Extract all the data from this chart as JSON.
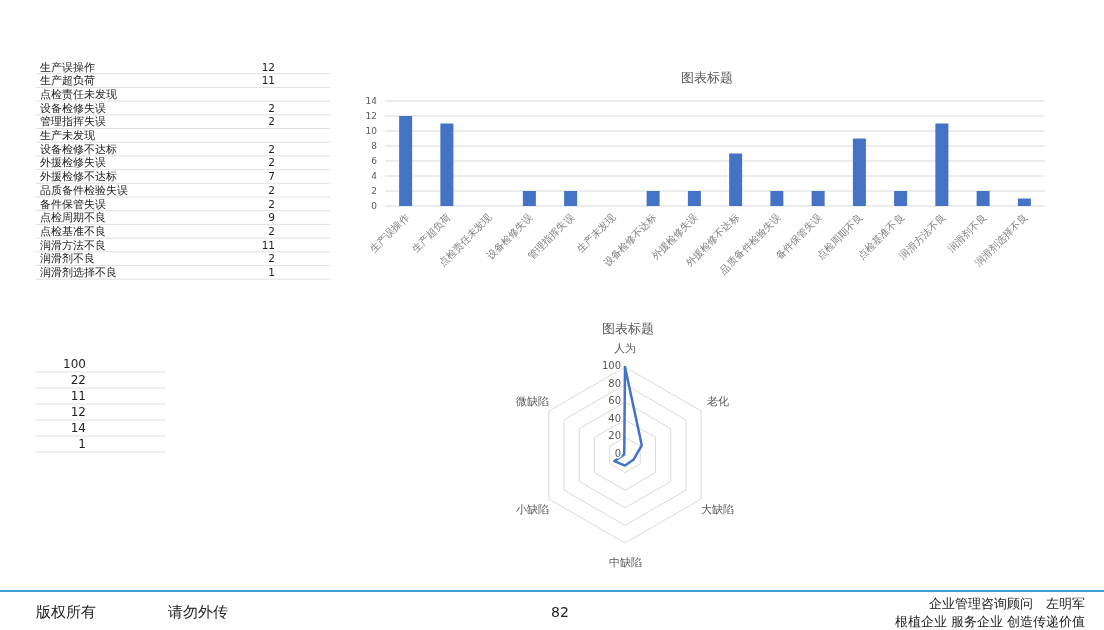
{
  "chart_data": [
    {
      "type": "other",
      "categories": [
        "生产误操作",
        "生产超负荷",
        "点检责任未发现",
        "设备检修失误",
        "管理指挥失误",
        "生产未发现",
        "设备检修不达标",
        "外援检修失误",
        "外援检修不达标",
        "品质备件检验失误",
        "备件保管失误",
        "点检周期不良",
        "点检基准不良",
        "润滑方法不良",
        "润滑剂不良",
        "润滑剂选择不良"
      ],
      "value_labels": [
        "12",
        "11",
        null,
        "2",
        "2",
        null,
        "2",
        "2",
        "7",
        "2",
        "2",
        "9",
        "2",
        "11",
        "2",
        "1"
      ]
    },
    {
      "type": "bar",
      "title": "图表标题",
      "categories": [
        "生产误操作",
        "生产超负荷",
        "点检责任未发现",
        "设备检修失误",
        "管理指挥失误",
        "生产未发现",
        "设备检修不达标",
        "外援检修失误",
        "外援检修不达标",
        "品质备件检验失误",
        "备件保管失误",
        "点检周期不良",
        "点检基准不良",
        "润滑方法不良",
        "润滑剂不良",
        "润滑剂选择不良"
      ],
      "values": [
        12,
        11,
        null,
        2,
        2,
        null,
        2,
        2,
        7,
        2,
        2,
        9,
        2,
        11,
        2,
        1
      ],
      "color": "#4472c4",
      "ylim": [
        0,
        14
      ],
      "yticks": [
        0,
        2,
        4,
        6,
        8,
        10,
        12,
        14
      ],
      "grid": "y"
    },
    {
      "type": "other",
      "annotations": [
        "100",
        "22",
        "11",
        "12",
        "14",
        "1"
      ]
    },
    {
      "type": "radar",
      "title": "图表标题",
      "categories": [
        "人为",
        "老化",
        "大缺陷",
        "中缺陷",
        "小缺陷",
        "微缺陷"
      ],
      "series": [
        {
          "color": "#4472c4",
          "values": [
            100,
            22,
            11,
            12,
            14,
            1
          ]
        }
      ],
      "ylim": [
        0,
        100
      ],
      "yticks": [
        0,
        20,
        40,
        60,
        80,
        100
      ],
      "grid": true
    },
    {
      "type": "other",
      "annotations": [
        "版权所有",
        "请勿外传",
        "82",
        "企业管理咨询顾问　左明军",
        "根植企业 服务企业 创造传递价值"
      ]
    }
  ]
}
